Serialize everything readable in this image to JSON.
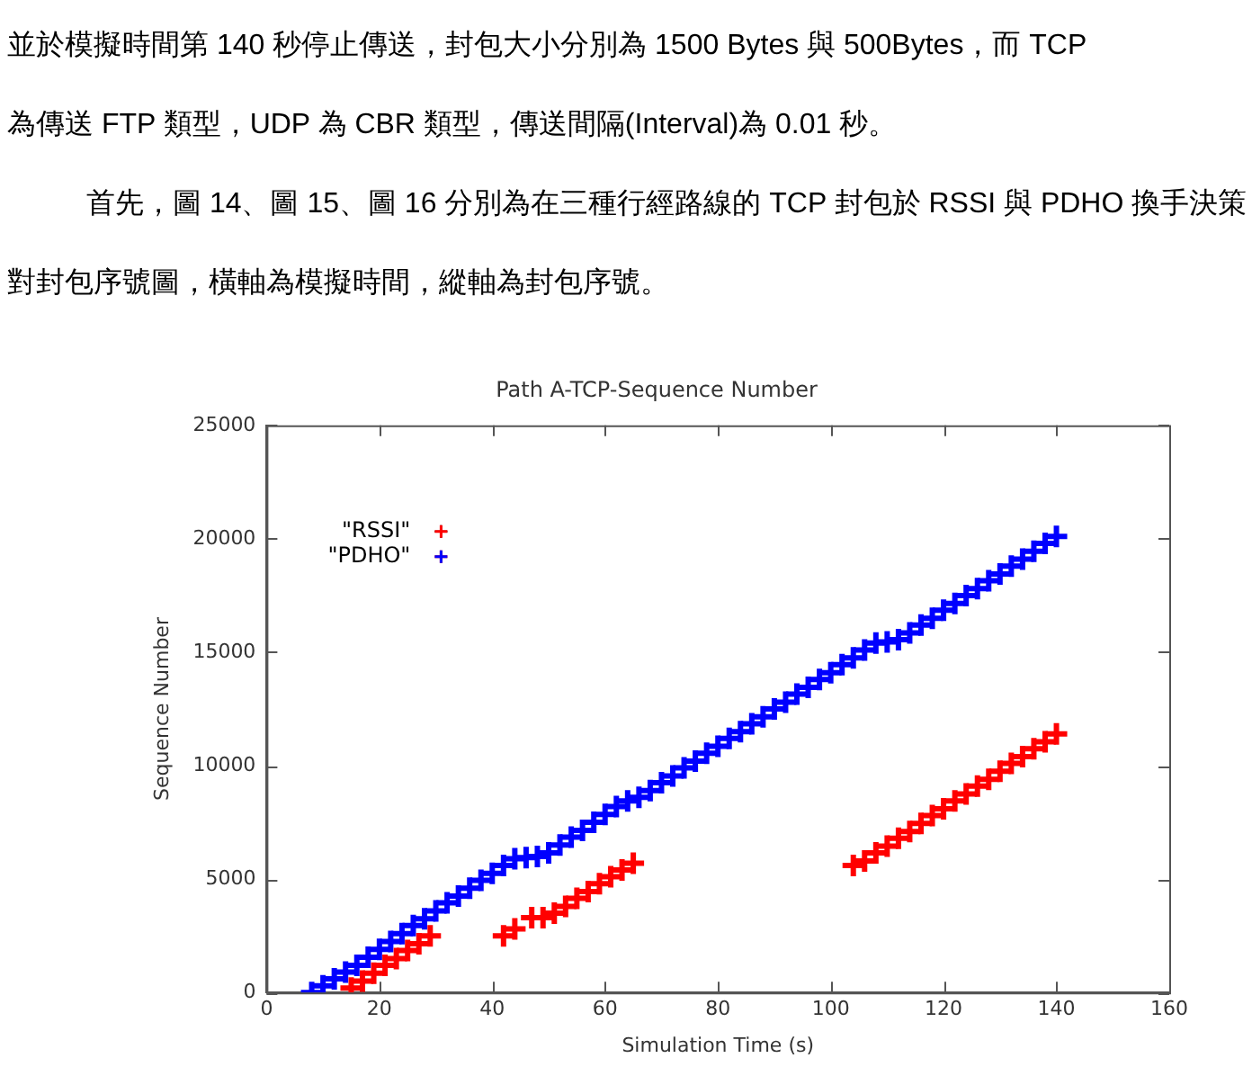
{
  "chart_data": {
    "type": "scatter",
    "title": "Path A-TCP-Sequence Number",
    "xlabel": "Simulation Time (s)",
    "ylabel": "Sequence Number",
    "annotations": [
      "並於模擬時間第 140 秒停止傳送，封包大小分別為 1500 Bytes 與 500Bytes，而 TCP",
      "為傳送 FTP 類型，UDP 為 CBR 類型，傳送間隔(Interval)為 0.01 秒。",
      "首先，圖 14、圖 15、圖 16 分別為在三種行經路線的 TCP 封包於 RSSI 與 PDHO 換手決策對封包序號圖，橫軸為模擬時間，縱軸為封包序號。"
    ],
    "xlim": [
      0,
      160
    ],
    "xticks": [
      0,
      20,
      40,
      60,
      80,
      100,
      120,
      140,
      160
    ],
    "ylim": [
      0,
      25000
    ],
    "yticks": [
      0,
      5000,
      10000,
      15000,
      20000,
      25000
    ],
    "grid": false,
    "legend": "top left",
    "series": [
      {
        "name": "\"RSSI\"",
        "color": "#ff0000",
        "marker": "cross",
        "x": [
          15,
          17,
          19,
          21,
          23,
          25,
          27,
          29,
          42,
          44,
          47,
          49,
          51,
          53,
          55,
          57,
          59,
          61,
          63,
          65,
          104,
          106,
          108,
          110,
          112,
          114,
          116,
          118,
          120,
          122,
          124,
          126,
          128,
          130,
          132,
          134,
          136,
          138,
          140
        ],
        "values": [
          200,
          500,
          850,
          1200,
          1500,
          1850,
          2150,
          2500,
          2500,
          2800,
          3300,
          3300,
          3500,
          3800,
          4150,
          4450,
          4800,
          5100,
          5400,
          5700,
          5600,
          5800,
          6150,
          6450,
          6800,
          7100,
          7450,
          7800,
          8100,
          8450,
          8750,
          9100,
          9400,
          9750,
          10100,
          10400,
          10750,
          11050,
          11400
        ]
      },
      {
        "name": "\"PDHO\"",
        "color": "#0000ff",
        "marker": "cross",
        "x": [
          8,
          10,
          12,
          14,
          16,
          18,
          20,
          22,
          24,
          26,
          28,
          30,
          32,
          34,
          36,
          38,
          40,
          42,
          44,
          46,
          48,
          50,
          52,
          54,
          56,
          58,
          60,
          62,
          64,
          66,
          68,
          70,
          72,
          74,
          76,
          78,
          80,
          82,
          84,
          86,
          88,
          90,
          92,
          94,
          96,
          98,
          100,
          102,
          104,
          106,
          108,
          110,
          112,
          114,
          116,
          118,
          120,
          122,
          124,
          126,
          128,
          130,
          132,
          134,
          136,
          138,
          140
        ],
        "values": [
          0,
          300,
          600,
          900,
          1200,
          1550,
          1900,
          2250,
          2600,
          2950,
          3250,
          3600,
          3950,
          4250,
          4600,
          4950,
          5250,
          5600,
          5900,
          5950,
          6000,
          6150,
          6500,
          6850,
          7150,
          7500,
          7850,
          8200,
          8450,
          8600,
          8900,
          9250,
          9550,
          9900,
          10200,
          10550,
          10850,
          11200,
          11500,
          11850,
          12150,
          12500,
          12800,
          13150,
          13450,
          13800,
          14100,
          14450,
          14750,
          15100,
          15400,
          15450,
          15550,
          15850,
          16200,
          16500,
          16850,
          17150,
          17500,
          17800,
          18150,
          18450,
          18800,
          19100,
          19450,
          19800,
          20100
        ]
      }
    ]
  }
}
